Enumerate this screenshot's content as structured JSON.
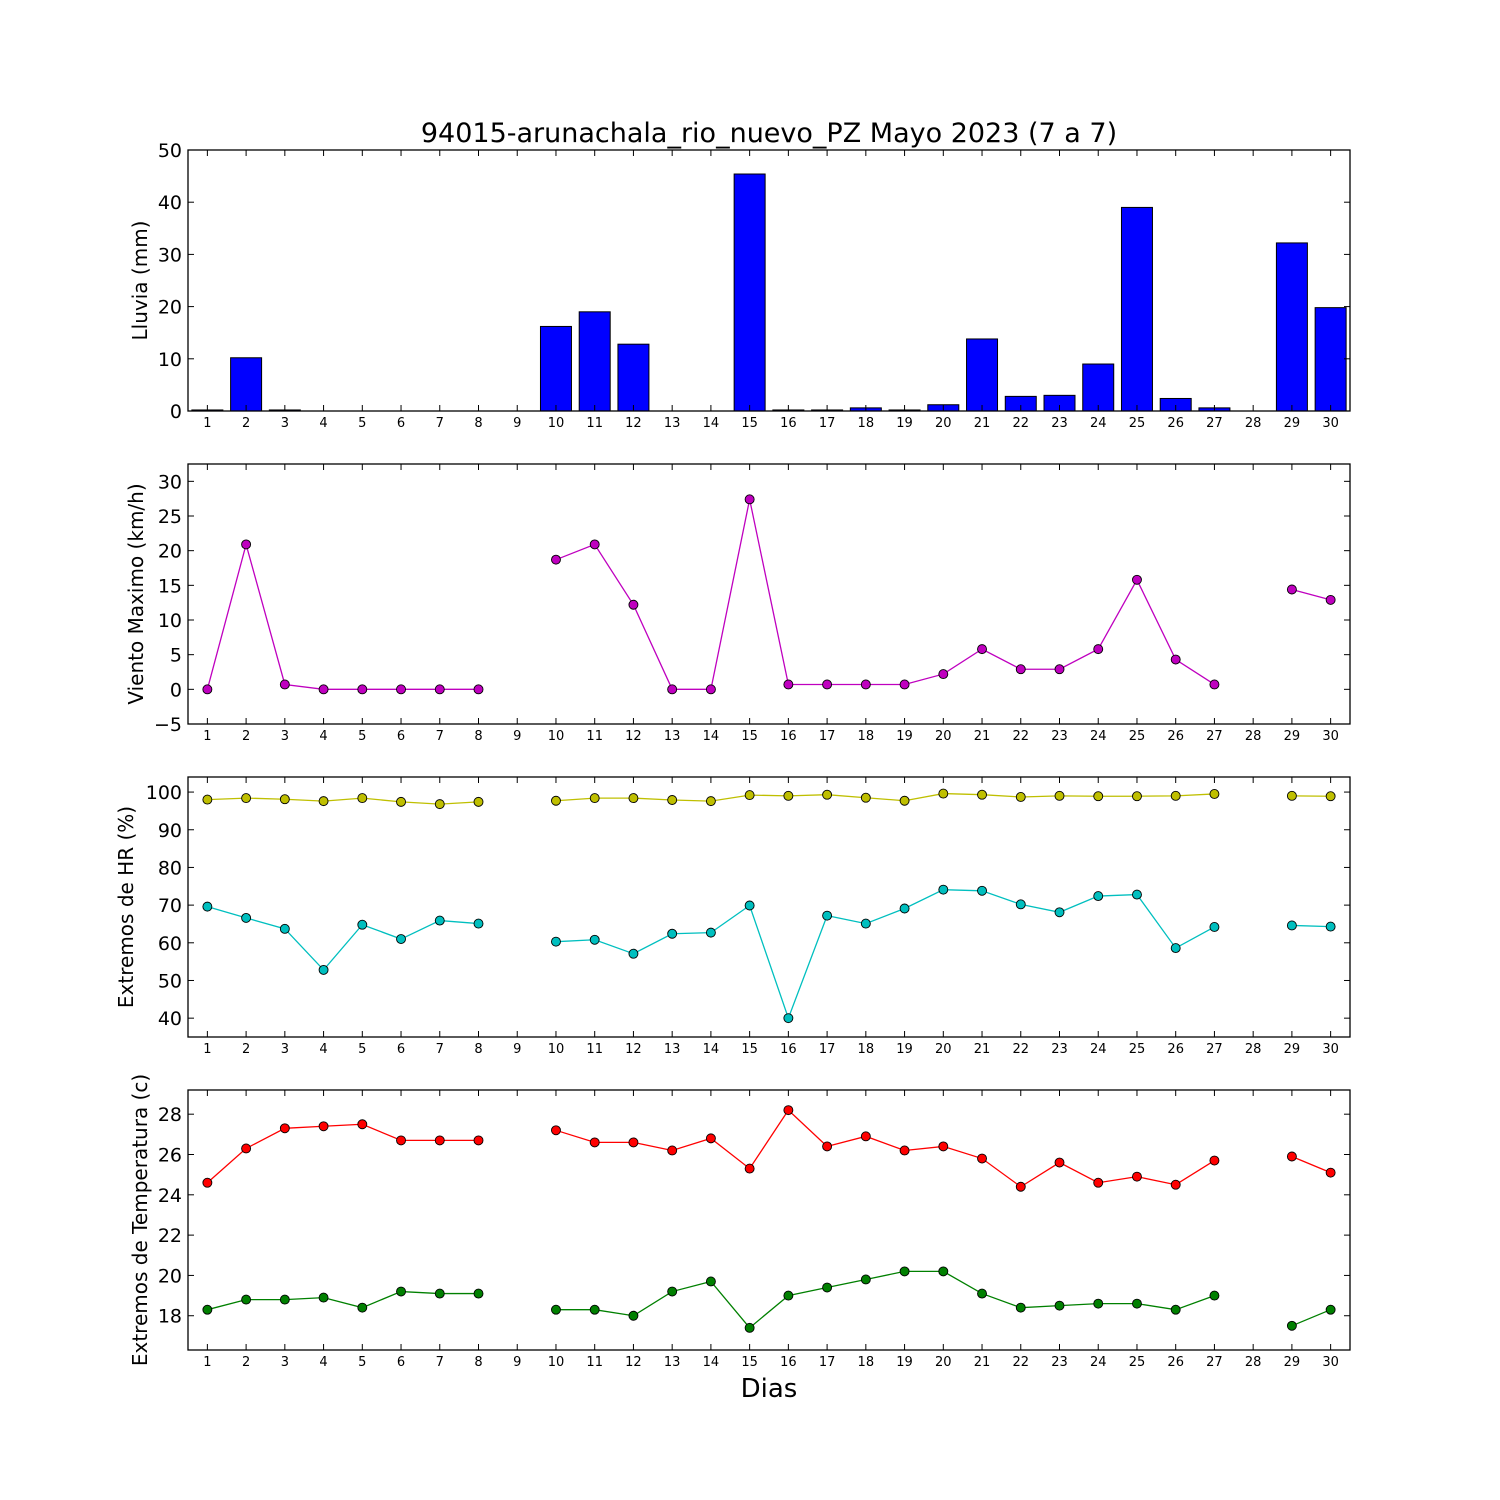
{
  "figure": {
    "title": "94015-arunachala_rio_nuevo_PZ Mayo 2023  (7 a 7)",
    "xlabel": "Dias"
  },
  "chart_data": [
    {
      "type": "bar",
      "ylabel": "Lluvia (mm)",
      "ylim": [
        0,
        50
      ],
      "yticks": [
        0,
        10,
        20,
        30,
        40,
        50
      ],
      "xlim": [
        0.5,
        30.5
      ],
      "categories": [
        1,
        2,
        3,
        4,
        5,
        6,
        7,
        8,
        9,
        10,
        11,
        12,
        13,
        14,
        15,
        16,
        17,
        18,
        19,
        20,
        21,
        22,
        23,
        24,
        25,
        26,
        27,
        28,
        29,
        30
      ],
      "series": [
        {
          "color": "#0000ff",
          "values": [
            0.2,
            10.2,
            0.2,
            0,
            0,
            0,
            0,
            0,
            0,
            16.2,
            19.0,
            12.8,
            0,
            0,
            45.4,
            0.2,
            0.2,
            0.6,
            0.2,
            1.2,
            13.8,
            2.8,
            3.0,
            9.0,
            39.0,
            2.4,
            0.6,
            0,
            32.2,
            19.8
          ]
        }
      ]
    },
    {
      "type": "line",
      "ylabel": "Viento Maximo (km/h)",
      "ylim": [
        -5,
        32.5
      ],
      "yticks": [
        -5,
        0,
        5,
        10,
        15,
        20,
        25,
        30
      ],
      "xlim": [
        0.5,
        30.5
      ],
      "x": [
        1,
        2,
        3,
        4,
        5,
        6,
        7,
        8,
        9,
        10,
        11,
        12,
        13,
        14,
        15,
        16,
        17,
        18,
        19,
        20,
        21,
        22,
        23,
        24,
        25,
        26,
        27,
        28,
        29,
        30
      ],
      "series": [
        {
          "color": "#bf00bf",
          "values": [
            0,
            20.9,
            0.7,
            0,
            0,
            0,
            0,
            0,
            null,
            18.7,
            20.9,
            12.2,
            0,
            0,
            27.4,
            0.7,
            0.7,
            0.7,
            0.7,
            2.2,
            5.8,
            2.9,
            2.9,
            5.8,
            15.8,
            4.3,
            0.7,
            null,
            14.4,
            12.9
          ]
        }
      ]
    },
    {
      "type": "line",
      "ylabel": "Extremos de HR (%)",
      "ylim": [
        35,
        104
      ],
      "yticks": [
        40,
        50,
        60,
        70,
        80,
        90,
        100
      ],
      "xlim": [
        0.5,
        30.5
      ],
      "x": [
        1,
        2,
        3,
        4,
        5,
        6,
        7,
        8,
        9,
        10,
        11,
        12,
        13,
        14,
        15,
        16,
        17,
        18,
        19,
        20,
        21,
        22,
        23,
        24,
        25,
        26,
        27,
        28,
        29,
        30
      ],
      "series": [
        {
          "color": "#bfbf00",
          "values": [
            98.0,
            98.4,
            98.1,
            97.6,
            98.4,
            97.4,
            96.8,
            97.4,
            null,
            97.7,
            98.4,
            98.4,
            97.9,
            97.6,
            99.2,
            99.0,
            99.3,
            98.5,
            97.7,
            99.6,
            99.3,
            98.7,
            99.0,
            98.9,
            98.9,
            99.0,
            99.5,
            null,
            99.0,
            98.9
          ]
        },
        {
          "color": "#00bfbf",
          "values": [
            69.6,
            66.6,
            63.7,
            52.8,
            64.8,
            61.0,
            65.9,
            65.1,
            null,
            60.3,
            60.8,
            57.1,
            62.4,
            62.7,
            69.9,
            40.0,
            67.2,
            65.1,
            69.1,
            74.1,
            73.8,
            70.2,
            68.1,
            72.4,
            72.8,
            58.6,
            64.2,
            null,
            64.6,
            64.3
          ]
        }
      ]
    },
    {
      "type": "line",
      "ylabel": "Extremos de Temperatura (c)",
      "ylim": [
        16.3,
        29.2
      ],
      "yticks": [
        18,
        20,
        22,
        24,
        26,
        28
      ],
      "xlim": [
        0.5,
        30.5
      ],
      "x": [
        1,
        2,
        3,
        4,
        5,
        6,
        7,
        8,
        9,
        10,
        11,
        12,
        13,
        14,
        15,
        16,
        17,
        18,
        19,
        20,
        21,
        22,
        23,
        24,
        25,
        26,
        27,
        28,
        29,
        30
      ],
      "series": [
        {
          "color": "#ff0000",
          "values": [
            24.6,
            26.3,
            27.3,
            27.4,
            27.5,
            26.7,
            26.7,
            26.7,
            null,
            27.2,
            26.6,
            26.6,
            26.2,
            26.8,
            25.3,
            28.2,
            26.4,
            26.9,
            26.2,
            26.4,
            25.8,
            24.4,
            25.6,
            24.6,
            24.9,
            24.5,
            25.7,
            null,
            25.9,
            25.1
          ]
        },
        {
          "color": "#008000",
          "values": [
            18.3,
            18.8,
            18.8,
            18.9,
            18.4,
            19.2,
            19.1,
            19.1,
            null,
            18.3,
            18.3,
            18.0,
            19.2,
            19.7,
            17.4,
            19.0,
            19.4,
            19.8,
            20.2,
            20.2,
            19.1,
            18.4,
            18.5,
            18.6,
            18.6,
            18.3,
            19.0,
            null,
            17.5,
            18.3
          ]
        }
      ]
    }
  ]
}
